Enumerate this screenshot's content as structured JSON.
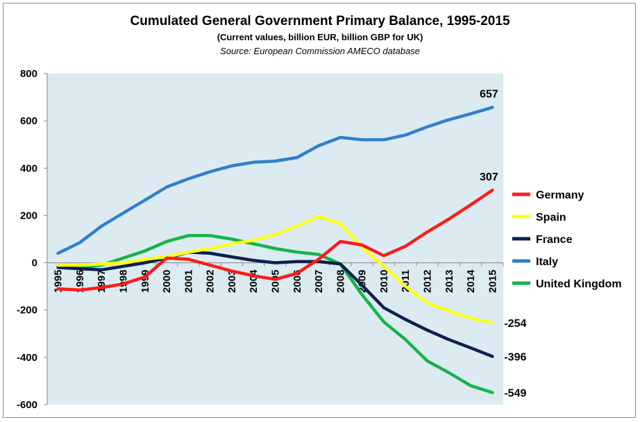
{
  "chart_data": {
    "type": "line",
    "title": "Cumulated General Government Primary Balance, 1995-2015",
    "subtitle": "(Current values, billion EUR, billion GBP for UK)",
    "source": "Source: European Commission AMECO database",
    "xlabel": "",
    "ylabel": "",
    "ylim": [
      -600,
      800
    ],
    "yticks": [
      -600,
      -400,
      -200,
      0,
      200,
      400,
      600,
      800
    ],
    "categories": [
      "1995",
      "1996",
      "1997",
      "1998",
      "1999",
      "2000",
      "2001",
      "2002",
      "2003",
      "2004",
      "2005",
      "2006",
      "2007",
      "2008",
      "2009",
      "2010",
      "2011",
      "2012",
      "2013",
      "2014",
      "2015"
    ],
    "legend_position": "right",
    "plot_background": "#dbebf1",
    "series": [
      {
        "name": "Germany",
        "color": "#ff1a1a",
        "values": [
          -110,
          -115,
          -105,
          -90,
          -60,
          20,
          15,
          -10,
          -35,
          -55,
          -70,
          -45,
          15,
          90,
          75,
          30,
          70,
          130,
          185,
          245,
          307
        ],
        "end_label": "307"
      },
      {
        "name": "Spain",
        "color": "#ffff1a",
        "values": [
          -10,
          -10,
          -5,
          0,
          15,
          25,
          45,
          60,
          80,
          95,
          120,
          155,
          195,
          165,
          65,
          -15,
          -100,
          -170,
          -205,
          -235,
          -254
        ],
        "end_label": "-254"
      },
      {
        "name": "France",
        "color": "#0c1f4f",
        "values": [
          -20,
          -25,
          -30,
          -15,
          0,
          20,
          45,
          40,
          25,
          10,
          0,
          5,
          5,
          -5,
          -95,
          -190,
          -240,
          -285,
          -325,
          -360,
          -396
        ],
        "end_label": "-396"
      },
      {
        "name": "Italy",
        "color": "#2f80cc",
        "values": [
          40,
          85,
          155,
          210,
          265,
          320,
          355,
          385,
          410,
          425,
          430,
          445,
          495,
          530,
          520,
          520,
          540,
          575,
          605,
          630,
          657
        ],
        "end_label": "657"
      },
      {
        "name": "United Kingdom",
        "color": "#16b34a",
        "values": [
          -15,
          -20,
          -10,
          20,
          50,
          90,
          115,
          115,
          100,
          80,
          60,
          45,
          35,
          -5,
          -135,
          -250,
          -325,
          -415,
          -465,
          -520,
          -549
        ],
        "end_label": "-549"
      }
    ]
  }
}
